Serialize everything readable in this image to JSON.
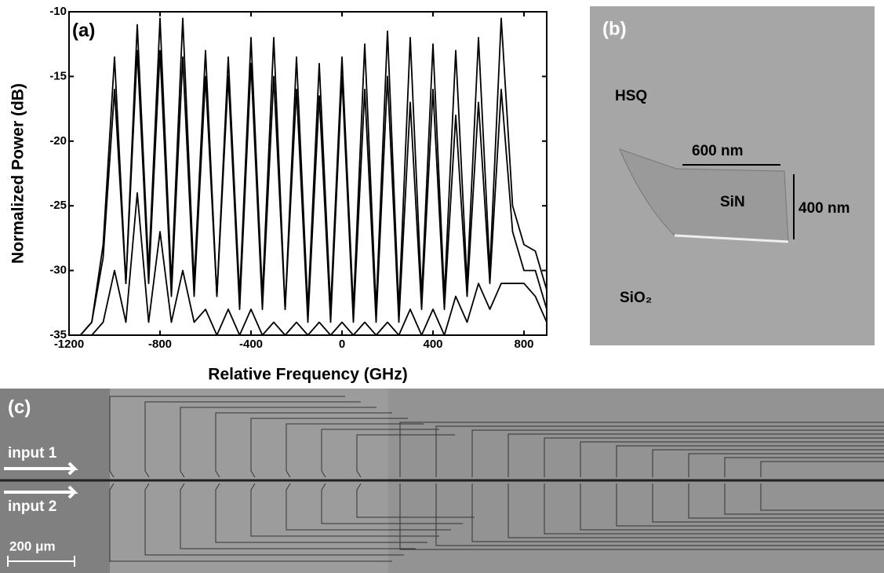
{
  "chart_data": {
    "type": "line",
    "annotation": "(a)",
    "x_label": "Relative Frequency (GHz)",
    "y_label": "Normalized Power (dB)",
    "x": [
      -1200,
      -1150,
      -1100,
      -1050,
      -1000,
      -950,
      -900,
      -850,
      -800,
      -750,
      -700,
      -650,
      -600,
      -550,
      -500,
      -450,
      -400,
      -350,
      -300,
      -250,
      -200,
      -150,
      -100,
      -50,
      0,
      50,
      100,
      150,
      200,
      250,
      300,
      350,
      400,
      450,
      500,
      550,
      600,
      650,
      700,
      750,
      800,
      850,
      900
    ],
    "series": [
      {
        "color": "#000000",
        "values": [
          -35,
          -35,
          -34,
          -28,
          -13.5,
          -31,
          -11,
          -30,
          -10.5,
          -31,
          -10.5,
          -31,
          -13,
          -32,
          -13.5,
          -32,
          -12,
          -32,
          -12,
          -33,
          -13.5,
          -33,
          -14,
          -33,
          -13.5,
          -33,
          -12.5,
          -33,
          -11.5,
          -33,
          -12,
          -32,
          -12.5,
          -32,
          -13,
          -31,
          -12,
          -30,
          -10.5,
          -25,
          -28,
          -28.5,
          -31.5
        ]
      },
      {
        "color": "#000000",
        "values": [
          -35,
          -35,
          -34,
          -29,
          -16,
          -31,
          -13,
          -31,
          -13,
          -32,
          -13.5,
          -32,
          -15,
          -32,
          -15,
          -33,
          -14,
          -33,
          -15,
          -33,
          -16,
          -34,
          -16.5,
          -34,
          -15,
          -34,
          -16,
          -34,
          -15,
          -34,
          -17,
          -33,
          -16,
          -33,
          -18,
          -32,
          -17,
          -31,
          -16,
          -27,
          -30,
          -30,
          -33
        ]
      },
      {
        "color": "#000000",
        "values": [
          -35,
          -35,
          -35,
          -34,
          -30,
          -34,
          -24,
          -34,
          -27,
          -34,
          -30,
          -34,
          -33,
          -35,
          -33,
          -35,
          -33,
          -35,
          -34,
          -35,
          -34,
          -35,
          -34,
          -35,
          -34,
          -35,
          -34,
          -35,
          -34,
          -35,
          -33,
          -35,
          -33,
          -35,
          -32,
          -34,
          -31,
          -33,
          -31,
          -31,
          -31,
          -32,
          -34
        ]
      }
    ],
    "xlim": [
      -1200,
      900
    ],
    "xticks": [
      -1200,
      -800,
      -400,
      0,
      400,
      800
    ],
    "ylim": [
      -35,
      -10
    ],
    "yticks": [
      -35,
      -30,
      -25,
      -20,
      -15,
      -10
    ],
    "grid": false
  },
  "panel_b": {
    "label": "(b)",
    "texts": [
      "HSQ",
      "600 nm",
      "SiN",
      "400 nm",
      "SiO₂"
    ]
  },
  "panel_c": {
    "label": "(c)",
    "inputs": [
      "input 1",
      "input 2"
    ],
    "scale_bar": "200 μm"
  }
}
